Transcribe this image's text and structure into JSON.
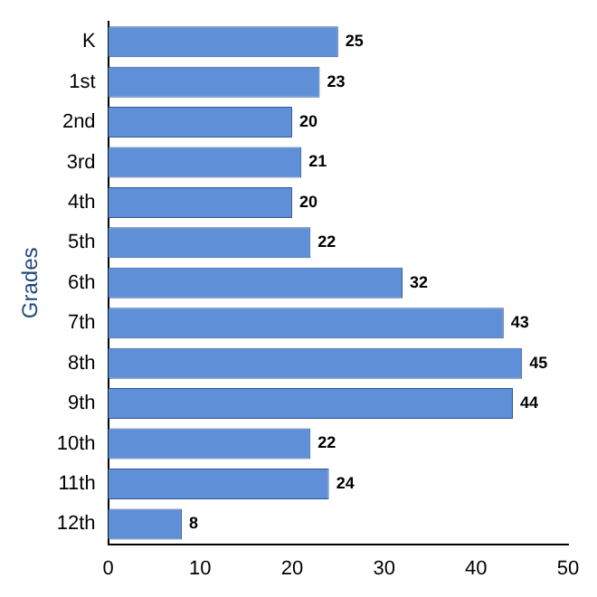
{
  "chart_data": {
    "type": "bar",
    "orientation": "horizontal",
    "ylabel": "Grades",
    "categories": [
      "K",
      "1st",
      "2nd",
      "3rd",
      "4th",
      "5th",
      "6th",
      "7th",
      "8th",
      "9th",
      "10th",
      "11th",
      "12th"
    ],
    "values": [
      25,
      23,
      20,
      21,
      20,
      22,
      32,
      43,
      45,
      44,
      22,
      24,
      8
    ],
    "color": "#5f8fd6",
    "xlim": [
      0,
      50
    ],
    "xticks": [
      0,
      10,
      20,
      30,
      40,
      50
    ],
    "grid": false,
    "legend": false,
    "data_labels": true
  }
}
